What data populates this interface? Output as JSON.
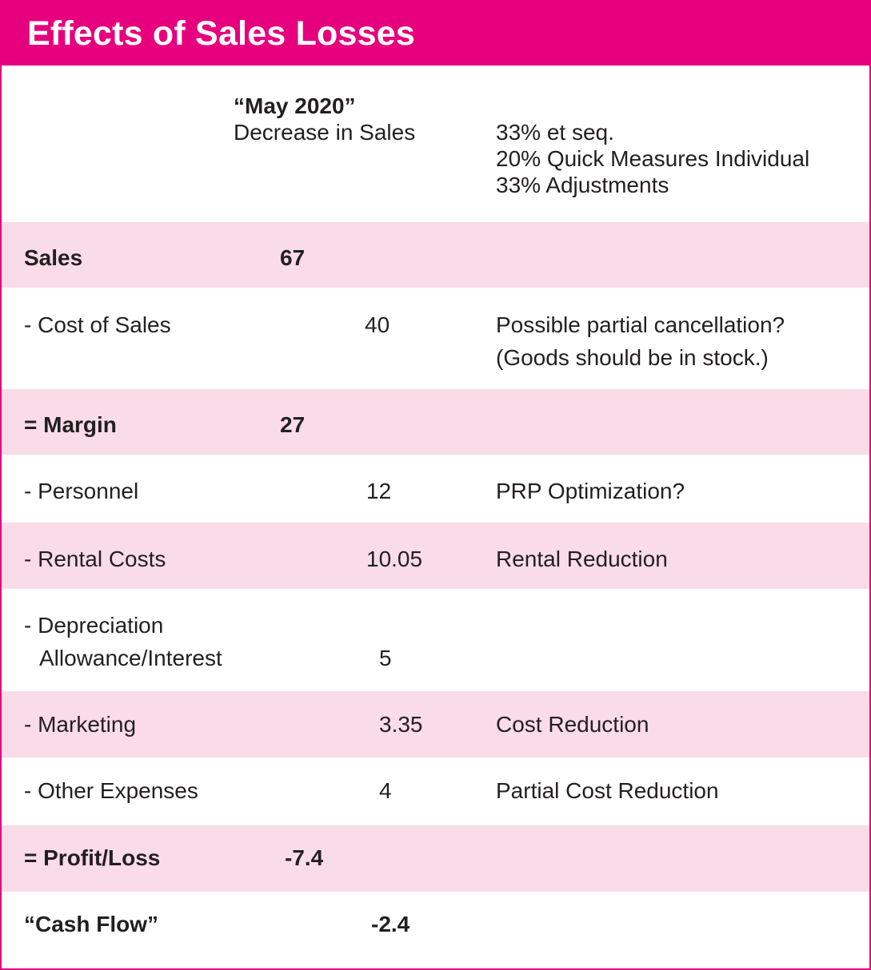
{
  "title": "Effects of Sales Losses",
  "colors": {
    "accent": "#e6007e",
    "row_highlight": "#f9dce8",
    "text": "#231f20"
  },
  "header": {
    "period": "“May 2020”",
    "period_subtitle": "Decrease in Sales",
    "notes": [
      "33% et seq.",
      "20% Quick Measures Individual",
      "33% Adjustments"
    ]
  },
  "rows": [
    {
      "label": "Sales",
      "value": "67",
      "note": ""
    },
    {
      "label": "- Cost of Sales",
      "value": "40",
      "note": "Possible partial cancellation?",
      "note_line2": "(Goods should be in stock.)"
    },
    {
      "label": "= Margin",
      "value": "27",
      "note": ""
    },
    {
      "label": "- Personnel",
      "value": "12",
      "note": "PRP Optimization?"
    },
    {
      "label": "- Rental Costs",
      "value": "10.05",
      "note": "Rental Reduction"
    },
    {
      "label": "- Depreciation",
      "label_line2": "Allowance/Interest",
      "value": "5",
      "note": ""
    },
    {
      "label": "- Marketing",
      "value": "3.35",
      "note": "Cost Reduction"
    },
    {
      "label": "- Other Expenses",
      "value": "4",
      "note": "Partial Cost Reduction"
    },
    {
      "label": "= Profit/Loss",
      "value": "-7.4",
      "note": ""
    },
    {
      "label": "“Cash Flow”",
      "value": "-2.4",
      "note": ""
    }
  ]
}
